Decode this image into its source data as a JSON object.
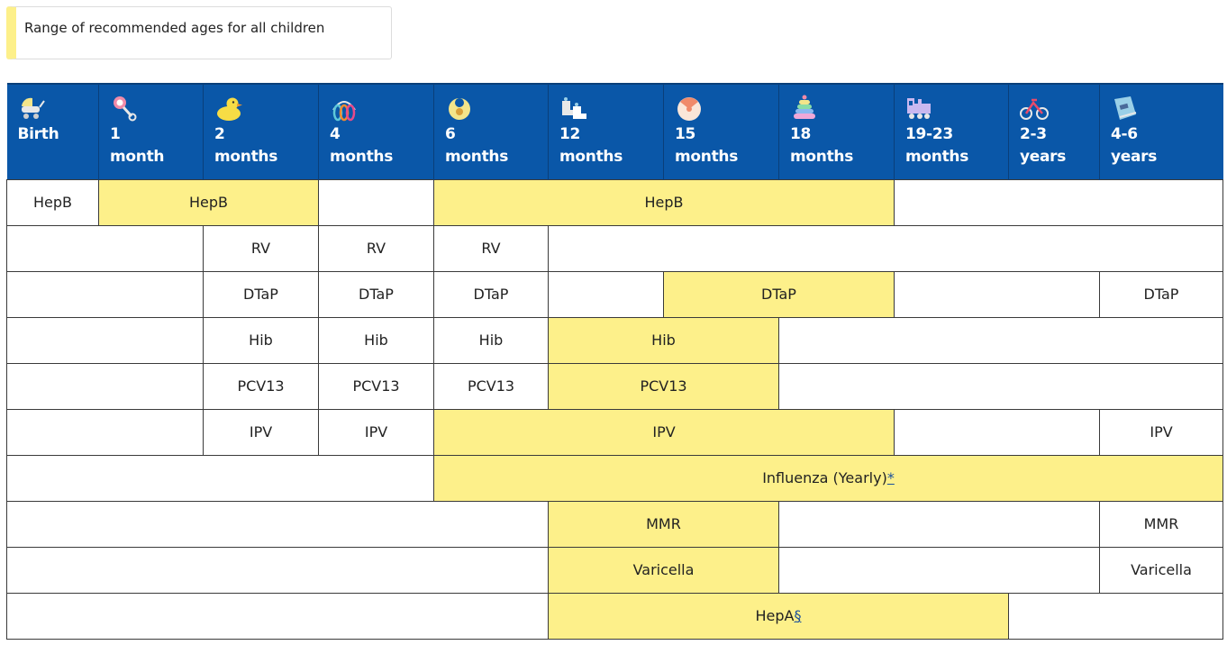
{
  "legend": {
    "text": "Range of recommended ages for all children",
    "color": "#fdf08a"
  },
  "colors": {
    "header_bg": "#0a57a8",
    "recommended": "#fdf08a",
    "border": "#3a3a3a"
  },
  "columns": [
    {
      "icon": "baby-carriage-icon",
      "line1": "Birth",
      "line2": ""
    },
    {
      "icon": "rattle-icon",
      "line1": "1",
      "line2": "month"
    },
    {
      "icon": "rubber-duck-icon",
      "line1": "2",
      "line2": "months"
    },
    {
      "icon": "rings-toy-icon",
      "line1": "4",
      "line2": "months"
    },
    {
      "icon": "bib-icon",
      "line1": "6",
      "line2": "months"
    },
    {
      "icon": "baby-shoes-icon",
      "line1": "12",
      "line2": "months"
    },
    {
      "icon": "ball-icon",
      "line1": "15",
      "line2": "months"
    },
    {
      "icon": "stacking-rings-icon",
      "line1": "18",
      "line2": "months"
    },
    {
      "icon": "toy-train-icon",
      "line1": "19-23",
      "line2": "months"
    },
    {
      "icon": "tricycle-icon",
      "line1": "2-3",
      "line2": "years"
    },
    {
      "icon": "book-icon",
      "line1": "4-6",
      "line2": "years"
    }
  ],
  "rows": {
    "hepb": {
      "birth": "HepB",
      "range1": "HepB",
      "range2": "HepB"
    },
    "rv": {
      "m2": "RV",
      "m4": "RV",
      "m6": "RV"
    },
    "dtap": {
      "m2": "DTaP",
      "m4": "DTaP",
      "m6": "DTaP",
      "range": "DTaP",
      "y4_6": "DTaP"
    },
    "hib": {
      "m2": "Hib",
      "m4": "Hib",
      "m6": "Hib",
      "range": "Hib"
    },
    "pcv13": {
      "m2": "PCV13",
      "m4": "PCV13",
      "m6": "PCV13",
      "range": "PCV13"
    },
    "ipv": {
      "m2": "IPV",
      "m4": "IPV",
      "range": "IPV",
      "y4_6": "IPV"
    },
    "influenza": {
      "label": "Influenza (Yearly)",
      "footnote": "*"
    },
    "mmr": {
      "range": "MMR",
      "y4_6": "MMR"
    },
    "varicella": {
      "range": "Varicella",
      "y4_6": "Varicella"
    },
    "hepa": {
      "label": "HepA",
      "footnote": "§"
    }
  }
}
